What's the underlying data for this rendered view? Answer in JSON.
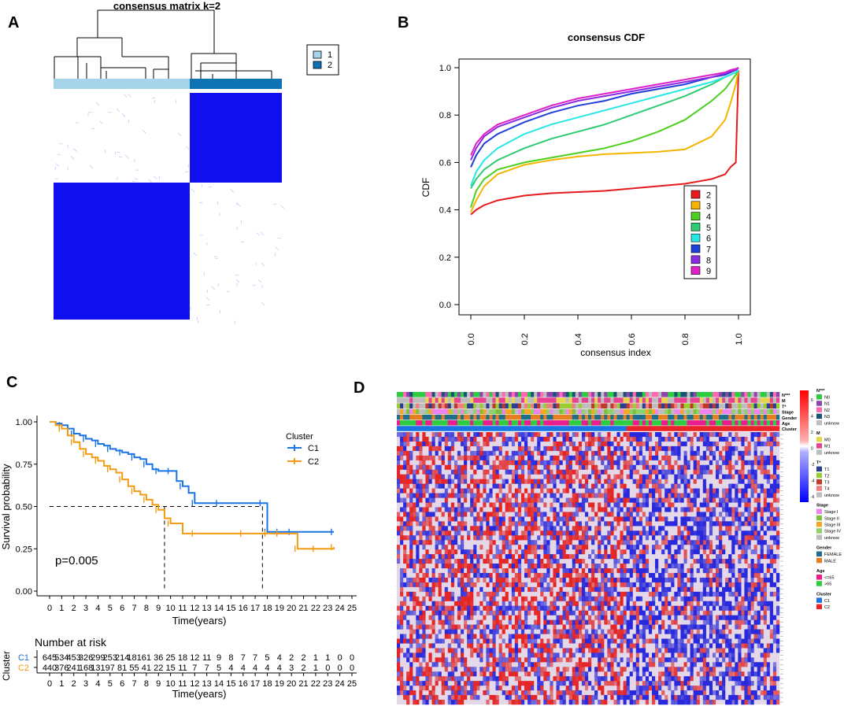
{
  "panels": {
    "a": {
      "letter": "A",
      "title": "consensus matrix k=2",
      "legend": [
        {
          "label": "1",
          "color": "#a6d5ea"
        },
        {
          "label": "2",
          "color": "#0f73b3"
        }
      ],
      "block_color": "#1010ee"
    },
    "b": {
      "letter": "B",
      "chart_data": {
        "type": "line",
        "title": "consensus CDF",
        "xlabel": "consensus index",
        "ylabel": "CDF",
        "xlim": [
          0,
          1
        ],
        "ylim": [
          0,
          1
        ],
        "x_ticks": [
          "0.0",
          "0.2",
          "0.4",
          "0.6",
          "0.8",
          "1.0"
        ],
        "y_ticks": [
          "0.0",
          "0.2",
          "0.4",
          "0.6",
          "0.8",
          "1.0"
        ],
        "x": [
          0.0,
          0.02,
          0.05,
          0.1,
          0.2,
          0.3,
          0.4,
          0.5,
          0.6,
          0.7,
          0.8,
          0.9,
          0.95,
          0.97,
          0.99,
          1.0
        ],
        "series": [
          {
            "name": "2",
            "color": "#e41a1c",
            "values": [
              0.38,
              0.4,
              0.42,
              0.44,
              0.46,
              0.47,
              0.475,
              0.48,
              0.49,
              0.5,
              0.51,
              0.53,
              0.55,
              0.58,
              0.6,
              0.99
            ]
          },
          {
            "name": "3",
            "color": "#f4b400",
            "values": [
              0.39,
              0.44,
              0.5,
              0.55,
              0.59,
              0.61,
              0.625,
              0.635,
              0.64,
              0.645,
              0.655,
              0.71,
              0.78,
              0.85,
              0.93,
              0.99
            ]
          },
          {
            "name": "4",
            "color": "#4cd01f",
            "values": [
              0.41,
              0.48,
              0.53,
              0.57,
              0.6,
              0.62,
              0.64,
              0.66,
              0.69,
              0.73,
              0.78,
              0.86,
              0.91,
              0.94,
              0.97,
              0.99
            ]
          },
          {
            "name": "5",
            "color": "#2ecc71",
            "values": [
              0.49,
              0.53,
              0.57,
              0.61,
              0.66,
              0.7,
              0.73,
              0.76,
              0.8,
              0.84,
              0.88,
              0.93,
              0.96,
              0.97,
              0.98,
              0.99
            ]
          },
          {
            "name": "6",
            "color": "#27e6e6",
            "values": [
              0.5,
              0.56,
              0.61,
              0.66,
              0.72,
              0.76,
              0.79,
              0.82,
              0.85,
              0.88,
              0.91,
              0.94,
              0.96,
              0.97,
              0.98,
              0.99
            ]
          },
          {
            "name": "7",
            "color": "#1f3fd8",
            "values": [
              0.58,
              0.63,
              0.68,
              0.72,
              0.77,
              0.81,
              0.84,
              0.86,
              0.89,
              0.91,
              0.93,
              0.96,
              0.97,
              0.98,
              0.99,
              1.0
            ]
          },
          {
            "name": "8",
            "color": "#8a2be2",
            "values": [
              0.61,
              0.66,
              0.71,
              0.75,
              0.79,
              0.83,
              0.86,
              0.88,
              0.9,
              0.92,
              0.94,
              0.96,
              0.975,
              0.985,
              0.99,
              1.0
            ]
          },
          {
            "name": "9",
            "color": "#e020c8",
            "values": [
              0.63,
              0.68,
              0.72,
              0.76,
              0.8,
              0.84,
              0.87,
              0.89,
              0.91,
              0.93,
              0.95,
              0.97,
              0.98,
              0.99,
              0.995,
              1.0
            ]
          }
        ]
      }
    },
    "c": {
      "letter": "C",
      "chart_data": {
        "type": "line",
        "title": "",
        "xlabel": "Time(years)",
        "ylabel": "Survival probability",
        "xlim": [
          0,
          25
        ],
        "ylim": [
          0,
          1
        ],
        "x_ticks": [
          "0",
          "1",
          "2",
          "3",
          "4",
          "5",
          "6",
          "7",
          "8",
          "9",
          "10",
          "11",
          "12",
          "13",
          "14",
          "15",
          "16",
          "17",
          "18",
          "19",
          "20",
          "21",
          "22",
          "23",
          "24",
          "25"
        ],
        "y_ticks": [
          "0.00",
          "0.25",
          "0.50",
          "0.75",
          "1.00"
        ],
        "legend_title": "Cluster",
        "pvalue": "p=0.005",
        "median_line": 0.5,
        "medians": [
          9.5,
          17.6
        ],
        "series": [
          {
            "name": "C1",
            "color": "#1b74e4",
            "times": [
              0,
              0.5,
              1,
              1.5,
              2,
              2.5,
              3,
              3.5,
              4,
              4.5,
              5,
              5.5,
              6,
              6.5,
              7,
              7.5,
              8,
              8.5,
              9,
              9.5,
              10,
              10.5,
              11,
              11.5,
              12,
              13,
              14,
              16,
              17.6,
              18,
              19,
              20,
              23.5
            ],
            "surv": [
              1.0,
              0.99,
              0.98,
              0.96,
              0.93,
              0.92,
              0.9,
              0.89,
              0.87,
              0.86,
              0.84,
              0.83,
              0.82,
              0.81,
              0.79,
              0.78,
              0.75,
              0.72,
              0.71,
              0.71,
              0.71,
              0.65,
              0.62,
              0.58,
              0.52,
              0.52,
              0.52,
              0.52,
              0.52,
              0.35,
              0.35,
              0.35,
              0.35
            ]
          },
          {
            "name": "C2",
            "color": "#f39c12",
            "times": [
              0,
              0.5,
              1,
              1.5,
              2,
              2.5,
              3,
              3.5,
              4,
              4.5,
              5,
              5.5,
              6,
              6.5,
              7,
              7.5,
              8,
              8.5,
              9,
              9.5,
              10,
              11,
              12,
              14,
              16,
              18,
              19,
              20.5,
              22,
              23.5
            ],
            "surv": [
              1.0,
              0.98,
              0.96,
              0.92,
              0.88,
              0.84,
              0.81,
              0.79,
              0.77,
              0.74,
              0.72,
              0.7,
              0.66,
              0.62,
              0.59,
              0.57,
              0.54,
              0.51,
              0.48,
              0.43,
              0.4,
              0.34,
              0.34,
              0.34,
              0.34,
              0.34,
              0.34,
              0.25,
              0.25,
              0.26
            ]
          }
        ]
      },
      "risk_table": {
        "title": "Number at risk",
        "ylabel": "Cluster",
        "xlabel": "Time(years)",
        "rows": [
          {
            "name": "C1",
            "color": "#1b74e4",
            "values": [
              "645",
              "534",
              "453",
              "326",
              "299",
              "253",
              "214",
              "181",
              "61",
              "36",
              "25",
              "18",
              "12",
              "11",
              "9",
              "8",
              "7",
              "7",
              "5",
              "4",
              "2",
              "2",
              "1",
              "1",
              "0",
              "0"
            ]
          },
          {
            "name": "C2",
            "color": "#f39c12",
            "values": [
              "440",
              "376",
              "241",
              "168",
              "131",
              "97",
              "81",
              "55",
              "41",
              "22",
              "15",
              "11",
              "7",
              "7",
              "5",
              "4",
              "4",
              "4",
              "4",
              "4",
              "3",
              "2",
              "1",
              "0",
              "0",
              "0"
            ]
          }
        ]
      }
    },
    "d": {
      "letter": "D",
      "annotation_rows": [
        "N***",
        "M",
        "T*",
        "Stage",
        "Gender",
        "Age",
        "Cluster"
      ],
      "colorbar_ticks": [
        "6",
        "4",
        "2",
        "0",
        "-2",
        "-4",
        "-6"
      ],
      "legend_groups": [
        {
          "title": "N***",
          "items": [
            {
              "label": "N0",
              "color": "#2ecc40"
            },
            {
              "label": "N1",
              "color": "#8e44ad"
            },
            {
              "label": "N2",
              "color": "#ff69b4"
            },
            {
              "label": "N3",
              "color": "#1a5276"
            },
            {
              "label": "unknow",
              "color": "#bdbdbd"
            }
          ]
        },
        {
          "title": "M",
          "items": [
            {
              "label": "M0",
              "color": "#e8d44d"
            },
            {
              "label": "M1",
              "color": "#e84393"
            },
            {
              "label": "unknow",
              "color": "#bdbdbd"
            }
          ]
        },
        {
          "title": "T*",
          "items": [
            {
              "label": "T1",
              "color": "#2c3e90"
            },
            {
              "label": "T2",
              "color": "#9acd32"
            },
            {
              "label": "T3",
              "color": "#c0392b"
            },
            {
              "label": "T4",
              "color": "#f08080"
            },
            {
              "label": "unknow",
              "color": "#bdbdbd"
            }
          ]
        },
        {
          "title": "Stage",
          "items": [
            {
              "label": "Stage I",
              "color": "#ee82ee"
            },
            {
              "label": "Stage II",
              "color": "#7fbf3f"
            },
            {
              "label": "Stage III",
              "color": "#f5a623"
            },
            {
              "label": "Stage IV",
              "color": "#8fd16a"
            },
            {
              "label": "unknow",
              "color": "#bdbdbd"
            }
          ]
        },
        {
          "title": "Gender",
          "items": [
            {
              "label": "FEMALE",
              "color": "#1f6f8b"
            },
            {
              "label": "MALE",
              "color": "#e67e22"
            }
          ]
        },
        {
          "title": "Age",
          "items": [
            {
              "label": "<=65",
              "color": "#e91e8c"
            },
            {
              "label": ">65",
              "color": "#2ecc40"
            }
          ]
        },
        {
          "title": "Cluster",
          "items": [
            {
              "label": "C1",
              "color": "#1b74e4"
            },
            {
              "label": "C2",
              "color": "#e8242a"
            }
          ]
        }
      ]
    }
  }
}
